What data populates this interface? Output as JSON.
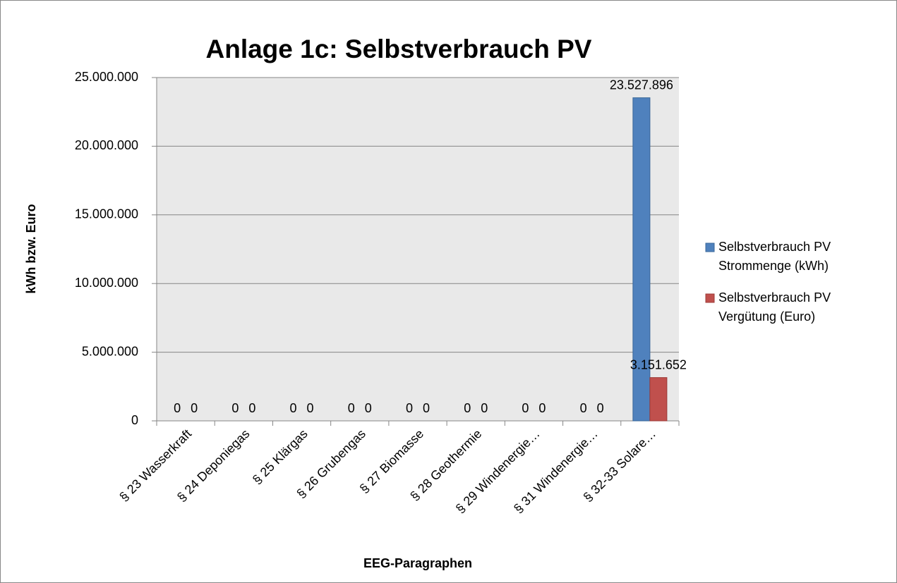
{
  "chart_data": {
    "type": "bar",
    "title": "Anlage 1c: Selbstverbrauch PV",
    "x_label": "EEG-Paragraphen",
    "y_label": "kWh bzw. Euro",
    "categories": [
      "§ 23 Wasserkraft",
      "§ 24 Deponiegas",
      "§ 25 Klärgas",
      "§ 26 Grubengas",
      "§ 27 Biomasse",
      "§ 28 Geothermie",
      "§ 29 Windenergie…",
      "§ 31 Windenergie…",
      "§ 32-33 Solare…"
    ],
    "series": [
      {
        "name": "Selbstverbrauch PV Strommenge (kWh)",
        "color": "#4f81bd",
        "values": [
          0,
          0,
          0,
          0,
          0,
          0,
          0,
          0,
          23527896
        ],
        "value_labels": [
          "0",
          "0",
          "0",
          "0",
          "0",
          "0",
          "0",
          "0",
          "23.527.896"
        ]
      },
      {
        "name": "Selbstverbrauch PV Vergütung (Euro)",
        "color": "#c0504d",
        "values": [
          0,
          0,
          0,
          0,
          0,
          0,
          0,
          0,
          3151652
        ],
        "value_labels": [
          "0",
          "0",
          "0",
          "0",
          "0",
          "0",
          "0",
          "0",
          "3.151.652"
        ]
      }
    ],
    "ylim": [
      0,
      25000000
    ],
    "yticks": [
      0,
      {
        "value": 5000000,
        "label": "5.000.000"
      },
      {
        "value": 10000000,
        "label": "10.000.000"
      },
      {
        "value": 15000000,
        "label": "15.000.000"
      },
      {
        "value": 20000000,
        "label": "20.000.000"
      },
      {
        "value": 25000000,
        "label": "25.000.000"
      }
    ],
    "grid": true,
    "legend": "right"
  }
}
